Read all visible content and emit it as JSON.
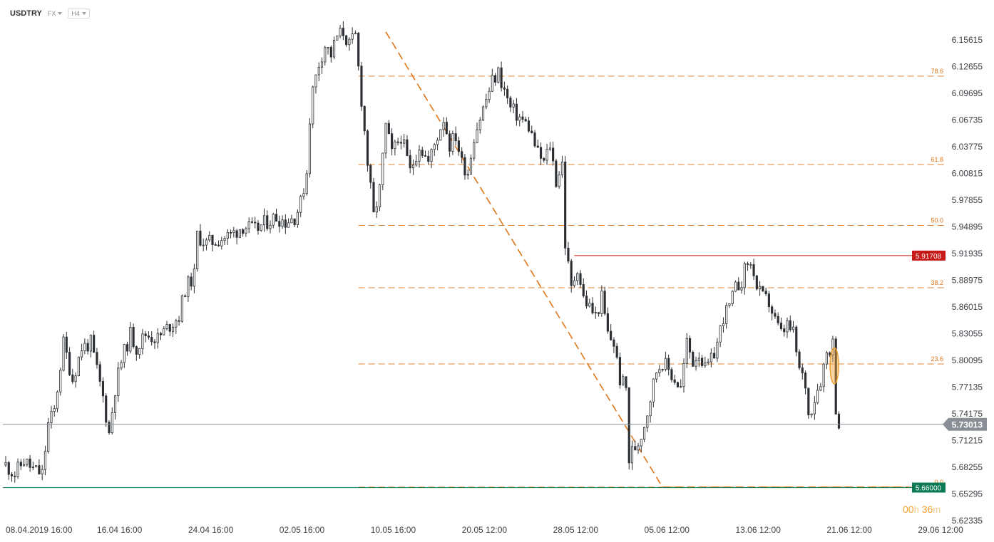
{
  "toolbar": {
    "symbol": "USDTRY",
    "market": "FX",
    "timeframe": "H4"
  },
  "countdown": {
    "hours": "00",
    "hours_unit": "h",
    "minutes": "36",
    "minutes_unit": "m"
  },
  "colors": {
    "candle": "#2b2f33",
    "fib": "#e0761a",
    "resistance": "#c81919",
    "support": "#0d7a55",
    "current": "#8a8f96",
    "highlight": "#f0a030"
  },
  "chart_data": {
    "type": "candlestick",
    "title": "USDTRY",
    "interval": "H4",
    "ylim": [
      5.62335,
      6.17
    ],
    "y_ticks": [
      "6.15615",
      "6.12655",
      "6.09695",
      "6.06735",
      "6.03775",
      "6.00815",
      "5.97855",
      "5.94895",
      "5.91935",
      "5.88975",
      "5.86015",
      "5.83055",
      "5.80095",
      "5.77135",
      "5.74175",
      "5.71215",
      "5.68255",
      "5.65295",
      "5.62335"
    ],
    "x_ticks": [
      {
        "label": "08.04.2019  16:00",
        "slot": 0
      },
      {
        "label": "16.04  16:00",
        "slot": 30
      },
      {
        "label": "24.04  16:00",
        "slot": 60
      },
      {
        "label": "02.05  16:00",
        "slot": 90
      },
      {
        "label": "10.05  16:00",
        "slot": 120
      },
      {
        "label": "20.05  12:00",
        "slot": 150
      },
      {
        "label": "28.05  12:00",
        "slot": 180
      },
      {
        "label": "05.06  12:00",
        "slot": 210
      },
      {
        "label": "13.06  12:00",
        "slot": 240
      },
      {
        "label": "21.06  12:00",
        "slot": 270
      },
      {
        "label": "29.06  12:00",
        "slot": 300
      }
    ],
    "slots": 310,
    "price_path": [
      [
        0,
        5.685
      ],
      [
        3,
        5.675
      ],
      [
        6,
        5.69
      ],
      [
        9,
        5.68
      ],
      [
        12,
        5.675
      ],
      [
        14,
        5.73
      ],
      [
        16,
        5.745
      ],
      [
        19,
        5.82
      ],
      [
        22,
        5.78
      ],
      [
        25,
        5.815
      ],
      [
        28,
        5.82
      ],
      [
        30,
        5.79
      ],
      [
        32,
        5.76
      ],
      [
        34,
        5.72
      ],
      [
        36,
        5.77
      ],
      [
        38,
        5.8
      ],
      [
        41,
        5.83
      ],
      [
        43,
        5.815
      ],
      [
        46,
        5.83
      ],
      [
        50,
        5.825
      ],
      [
        54,
        5.84
      ],
      [
        57,
        5.85
      ],
      [
        59,
        5.88
      ],
      [
        62,
        5.895
      ],
      [
        63,
        5.94
      ],
      [
        66,
        5.93
      ],
      [
        70,
        5.935
      ],
      [
        74,
        5.94
      ],
      [
        78,
        5.95
      ],
      [
        82,
        5.945
      ],
      [
        86,
        5.955
      ],
      [
        89,
        5.96
      ],
      [
        92,
        5.955
      ],
      [
        95,
        5.96
      ],
      [
        97,
        5.975
      ],
      [
        99,
        6.01
      ],
      [
        100,
        6.07
      ],
      [
        101,
        6.1
      ],
      [
        103,
        6.13
      ],
      [
        105,
        6.15
      ],
      [
        107,
        6.14
      ],
      [
        109,
        6.16
      ],
      [
        111,
        6.165
      ],
      [
        113,
        6.15
      ],
      [
        115,
        6.16
      ],
      [
        117,
        6.09
      ],
      [
        119,
        6.02
      ],
      [
        121,
        5.96
      ],
      [
        123,
        5.99
      ],
      [
        125,
        6.06
      ],
      [
        127,
        6.03
      ],
      [
        130,
        6.05
      ],
      [
        133,
        6.01
      ],
      [
        136,
        6.04
      ],
      [
        139,
        6.02
      ],
      [
        142,
        6.05
      ],
      [
        144,
        6.07
      ],
      [
        146,
        6.04
      ],
      [
        148,
        6.05
      ],
      [
        150,
        6.02
      ],
      [
        152,
        6.01
      ],
      [
        154,
        6.05
      ],
      [
        156,
        6.07
      ],
      [
        158,
        6.09
      ],
      [
        160,
        6.11
      ],
      [
        162,
        6.12
      ],
      [
        164,
        6.1
      ],
      [
        166,
        6.08
      ],
      [
        169,
        6.07
      ],
      [
        172,
        6.06
      ],
      [
        175,
        6.03
      ],
      [
        177,
        6.02
      ],
      [
        179,
        6.04
      ],
      [
        181,
        6.0
      ],
      [
        183,
        6.02
      ],
      [
        184,
        5.93
      ],
      [
        186,
        5.88
      ],
      [
        188,
        5.905
      ],
      [
        190,
        5.87
      ],
      [
        192,
        5.86
      ],
      [
        194,
        5.85
      ],
      [
        196,
        5.87
      ],
      [
        198,
        5.83
      ],
      [
        200,
        5.82
      ],
      [
        202,
        5.78
      ],
      [
        204,
        5.77
      ],
      [
        205,
        5.69
      ],
      [
        206,
        5.7
      ],
      [
        208,
        5.71
      ],
      [
        210,
        5.73
      ],
      [
        212,
        5.76
      ],
      [
        214,
        5.79
      ],
      [
        216,
        5.8
      ],
      [
        218,
        5.79
      ],
      [
        220,
        5.78
      ],
      [
        222,
        5.77
      ],
      [
        224,
        5.82
      ],
      [
        226,
        5.8
      ],
      [
        228,
        5.81
      ],
      [
        230,
        5.79
      ],
      [
        232,
        5.8
      ],
      [
        234,
        5.82
      ],
      [
        236,
        5.85
      ],
      [
        238,
        5.86
      ],
      [
        240,
        5.88
      ],
      [
        242,
        5.89
      ],
      [
        244,
        5.91
      ],
      [
        246,
        5.9
      ],
      [
        247,
        5.88
      ],
      [
        249,
        5.87
      ],
      [
        251,
        5.865
      ],
      [
        253,
        5.845
      ],
      [
        255,
        5.83
      ],
      [
        257,
        5.84
      ],
      [
        259,
        5.83
      ],
      [
        261,
        5.79
      ],
      [
        263,
        5.775
      ],
      [
        264,
        5.74
      ],
      [
        266,
        5.76
      ],
      [
        268,
        5.78
      ],
      [
        270,
        5.81
      ],
      [
        272,
        5.82
      ],
      [
        273,
        5.75
      ],
      [
        274,
        5.73
      ]
    ],
    "last_slot": 274,
    "levels": [
      {
        "label": "5.91708",
        "value": 5.91708,
        "kind": "resistance",
        "from_slot": 187
      },
      {
        "label": "5.73013",
        "value": 5.73013,
        "kind": "current",
        "from_slot": 0
      },
      {
        "label": "5.66000",
        "value": 5.66,
        "kind": "support",
        "from_slot": 0
      }
    ],
    "fibonacci": {
      "from_slot": 116,
      "levels": [
        {
          "label": "78.6",
          "value": 6.116
        },
        {
          "label": "61.8",
          "value": 6.018
        },
        {
          "label": "50.0",
          "value": 5.9505
        },
        {
          "label": "38.2",
          "value": 5.8815
        },
        {
          "label": "23.6",
          "value": 5.797
        },
        {
          "label": "0.0",
          "value": 5.6605
        }
      ]
    },
    "trendline": {
      "x1": 125,
      "y1": 6.165,
      "x2": 216,
      "y2": 5.6605,
      "x3": 297,
      "y3": 5.6605
    },
    "highlight": {
      "slot": 272.5,
      "from": 5.775,
      "to": 5.815
    }
  }
}
